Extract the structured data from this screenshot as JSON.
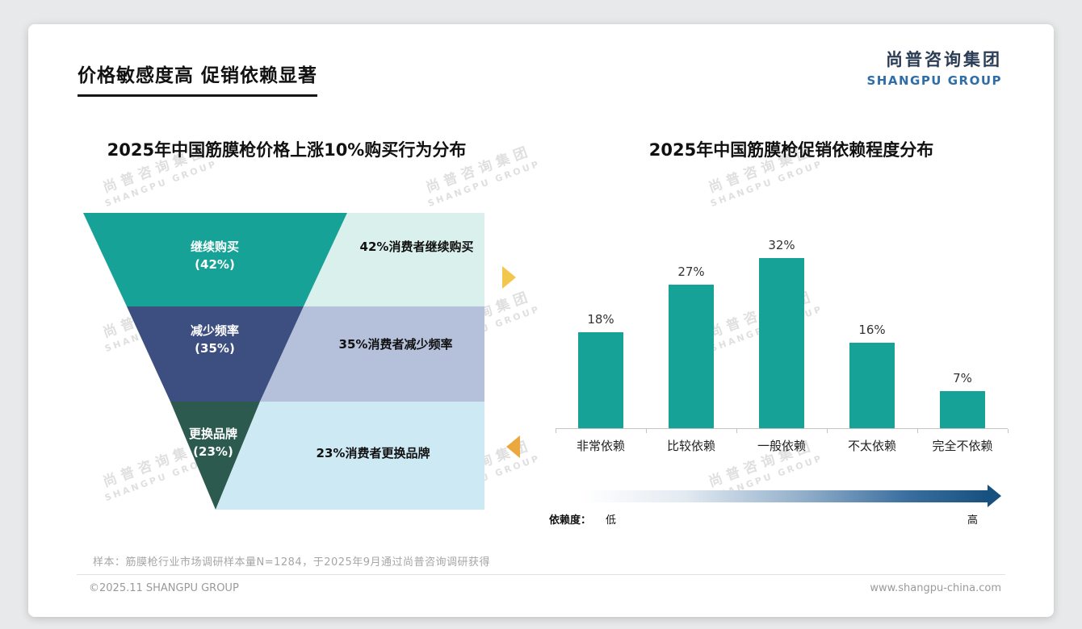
{
  "page": {
    "title": "价格敏感度高 促销依赖显著",
    "logo": {
      "cn": "尚普咨询集团",
      "en": "SHANGPU GROUP"
    },
    "watermark": {
      "cn": "尚普咨询集团",
      "en": "SHANGPU GROUP"
    },
    "footnote": "样本：筋膜枪行业市场调研样本量N=1284，于2025年9月通过尚普咨询调研获得",
    "footer": {
      "left": "©2025.11 SHANGPU GROUP",
      "right": "www.shangpu-china.com"
    }
  },
  "chart_data": [
    {
      "type": "funnel",
      "title": "2025年中国筋膜枪价格上涨10%购买行为分布",
      "levels": [
        {
          "label": "继续购买",
          "value_label": "(42%)",
          "value": 42,
          "annotation": "42%消费者继续购买"
        },
        {
          "label": "减少频率",
          "value_label": "(35%)",
          "value": 35,
          "annotation": "35%消费者减少频率"
        },
        {
          "label": "更换品牌",
          "value_label": "(23%)",
          "value": 23,
          "annotation": "23%消费者更换品牌"
        }
      ],
      "colors": {
        "segments": [
          "#16A296",
          "#3D4E81",
          "#2D5A4E"
        ],
        "annotations": [
          "#D9F0EC",
          "#B5C1DA",
          "#CDEAF4"
        ]
      }
    },
    {
      "type": "bar",
      "title": "2025年中国筋膜枪促销依赖程度分布",
      "categories": [
        "非常依赖",
        "比较依赖",
        "一般依赖",
        "不太依赖",
        "完全不依赖"
      ],
      "values": [
        18,
        27,
        32,
        16,
        7
      ],
      "value_labels": [
        "18%",
        "27%",
        "32%",
        "16%",
        "7%"
      ],
      "bar_color": "#16A296",
      "ylim": [
        0,
        35
      ],
      "grid": false,
      "axis": {
        "label": "依赖度：",
        "low": "低",
        "high": "高"
      }
    }
  ]
}
